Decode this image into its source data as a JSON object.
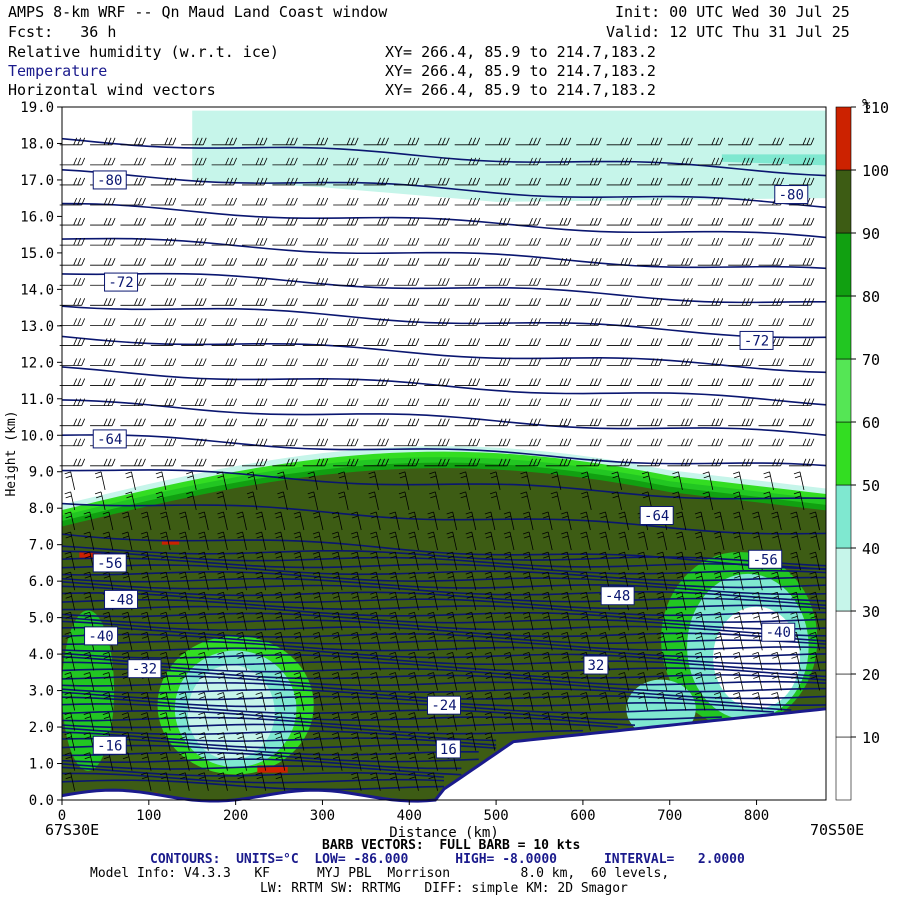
{
  "header": {
    "title": "AMPS 8-km WRF -- Qn Maud Land Coast window",
    "init": "Init: 00 UTC Wed 30 Jul 25",
    "fcst": "Fcst:   36 h",
    "valid": "Valid: 12 UTC Thu 31 Jul 25",
    "fields": [
      {
        "name": "Relative humidity (w.r.t. ice)",
        "xy": "XY= 266.4, 85.9 to 214.7,183.2"
      },
      {
        "name": "Temperature",
        "xy": "XY= 266.4, 85.9 to 214.7,183.2"
      },
      {
        "name": "Horizontal wind vectors",
        "xy": "XY= 266.4, 85.9 to 214.7,183.2"
      }
    ]
  },
  "footer": {
    "left_point": "67S30E",
    "right_point": "70S50E",
    "barb": "BARB VECTORS:  FULL BARB = 10 kts",
    "contours": "CONTOURS:  UNITS=°C  LOW= -86.000      HIGH= -8.0000      INTERVAL=   2.0000",
    "model1": "Model Info: V4.3.3   KF      MYJ PBL  Morrison         8.0 km,  60 levels,",
    "model2": "LW: RRTM SW: RRTMG   DIFF: simple KM: 2D Smagor"
  },
  "colors": {
    "contour": "#0a1670",
    "ocean": "#b8f0e4",
    "terrain": "#1a1a8c",
    "rh_bins": [
      "#ffffff",
      "#ffffff",
      "#ffffff",
      "#c6f5ea",
      "#7fe8d0",
      "#33dd22",
      "#55e655",
      "#22c622",
      "#11a011",
      "#3d5c14",
      "#cc2200"
    ]
  },
  "chart_data": {
    "type": "heatmap",
    "title": "",
    "xlabel": "Distance (km)",
    "ylabel": "Height (km)",
    "xlim": [
      0,
      880
    ],
    "ylim": [
      0,
      19
    ],
    "x_ticks": [
      0,
      100,
      200,
      300,
      400,
      500,
      600,
      700,
      800
    ],
    "y_ticks": [
      "0.0",
      "1.0",
      "2.0",
      "3.0",
      "4.0",
      "5.0",
      "6.0",
      "7.0",
      "8.0",
      "9.0",
      "10.0",
      "11.0",
      "12.0",
      "13.0",
      "14.0",
      "15.0",
      "16.0",
      "17.0",
      "18.0",
      "19.0"
    ],
    "colorbar": {
      "unit": "%",
      "ticks": [
        "10",
        "20",
        "30",
        "40",
        "50",
        "60",
        "70",
        "80",
        "90",
        "100",
        "110"
      ]
    },
    "contour_labels": [
      {
        "text": "-80",
        "x": 55,
        "y": 17.0
      },
      {
        "text": "-80",
        "x": 840,
        "y": 16.6
      },
      {
        "text": "-72",
        "x": 68,
        "y": 14.2
      },
      {
        "text": "-72",
        "x": 800,
        "y": 12.6
      },
      {
        "text": "-64",
        "x": 55,
        "y": 9.9
      },
      {
        "text": "-64",
        "x": 685,
        "y": 7.8
      },
      {
        "text": "-56",
        "x": 55,
        "y": 6.5
      },
      {
        "text": "-56",
        "x": 810,
        "y": 6.6
      },
      {
        "text": "-48",
        "x": 68,
        "y": 5.5
      },
      {
        "text": "-48",
        "x": 640,
        "y": 5.6
      },
      {
        "text": "-40",
        "x": 45,
        "y": 4.5
      },
      {
        "text": "-40",
        "x": 825,
        "y": 4.6
      },
      {
        "text": "-32",
        "x": 95,
        "y": 3.6
      },
      {
        "text": "32",
        "x": 615,
        "y": 3.7
      },
      {
        "text": "-24",
        "x": 440,
        "y": 2.6
      },
      {
        "text": "-16",
        "x": 55,
        "y": 1.5
      },
      {
        "text": "16",
        "x": 445,
        "y": 1.4
      }
    ]
  }
}
